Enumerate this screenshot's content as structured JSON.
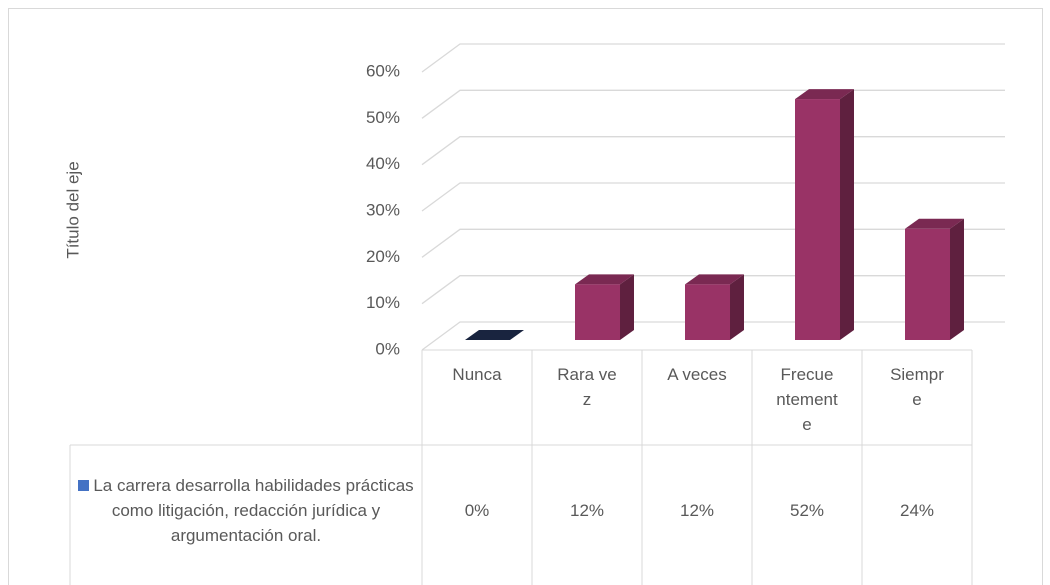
{
  "chart_data": {
    "type": "bar3d",
    "y_axis_label": "Título del eje",
    "categories": [
      "Nunca",
      "Rara vez",
      "A veces",
      "Frecuentemente",
      "Siempre"
    ],
    "series": [
      {
        "name": "La carrera desarrolla habilidades prácticas como litigación, redacción jurídica y argumentación oral.",
        "color": "#4472c4",
        "point_colors": [
          "#1f2d4f",
          "#993366",
          "#993366",
          "#993366",
          "#993366"
        ],
        "values": [
          0,
          12,
          12,
          52,
          24
        ],
        "value_labels": [
          "0%",
          "12%",
          "12%",
          "52%",
          "24%"
        ]
      }
    ],
    "ylim": [
      0,
      60
    ],
    "yticks": [
      {
        "value": 0,
        "label": "0%"
      },
      {
        "value": 10,
        "label": "10%"
      },
      {
        "value": 20,
        "label": "20%"
      },
      {
        "value": 30,
        "label": "30%"
      },
      {
        "value": 40,
        "label": "40%"
      },
      {
        "value": 50,
        "label": "50%"
      },
      {
        "value": 60,
        "label": "60%"
      }
    ],
    "grid": true,
    "data_table": true
  }
}
